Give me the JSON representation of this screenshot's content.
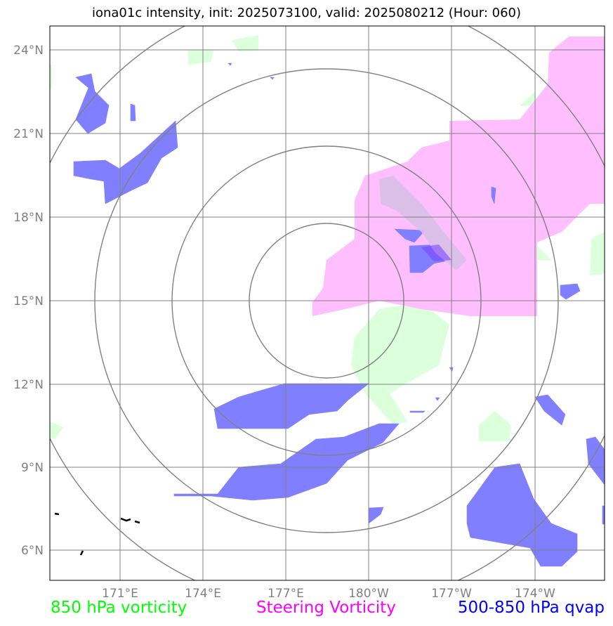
{
  "title": "iona01c intensity, init: 2025073100, valid: 2025080212 (Hour: 060)",
  "lat_ticks": [
    "24°N",
    "21°N",
    "18°N",
    "15°N",
    "12°N",
    "9°N",
    "6°N"
  ],
  "lon_ticks": [
    "171°E",
    "174°E",
    "177°E",
    "180°W",
    "177°W",
    "174°W"
  ],
  "legend": [
    {
      "label": "850 hPa vorticity",
      "color": "#00ff00"
    },
    {
      "label": "Steering Vorticity",
      "color": "#ff00ff"
    },
    {
      "label": "500-850 hPa qvap",
      "color": "#0000ff"
    }
  ],
  "fills": {
    "vorticity_850": "#dcffdc",
    "steering_vorticity": "#ffbfff",
    "qvap": "#7f7fff",
    "qvap_dark": "#7f3fff"
  },
  "range_rings": {
    "count": 4,
    "color": "#808080"
  }
}
